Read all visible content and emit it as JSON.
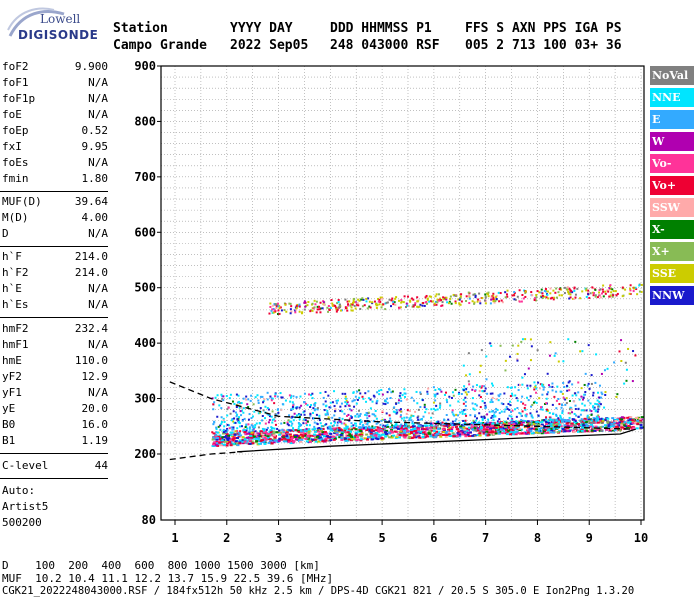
{
  "logo": {
    "line1": "Lowell",
    "line2": "DIGISONDE"
  },
  "header": {
    "labels_row1": [
      "Station",
      "YYYY DAY",
      "DDD HHMMSS P1",
      "FFS S AXN PPS IGA PS"
    ],
    "labels_row2": [
      "Campo Grande",
      "2022 Sep05",
      "248 043000 RSF",
      "005 2 713 100 03+ 36"
    ]
  },
  "params": {
    "group1": [
      {
        "name": "foF2",
        "value": "9.900"
      },
      {
        "name": "foF1",
        "value": "N/A"
      },
      {
        "name": "foF1p",
        "value": "N/A"
      },
      {
        "name": "foE",
        "value": "N/A"
      },
      {
        "name": "foEp",
        "value": "0.52"
      },
      {
        "name": "fxI",
        "value": "9.95"
      },
      {
        "name": "foEs",
        "value": "N/A"
      },
      {
        "name": "fmin",
        "value": "1.80"
      }
    ],
    "group2": [
      {
        "name": "MUF(D)",
        "value": "39.64"
      },
      {
        "name": "M(D)",
        "value": "4.00"
      },
      {
        "name": "D",
        "value": "N/A"
      }
    ],
    "group3": [
      {
        "name": "h`F",
        "value": "214.0"
      },
      {
        "name": "h`F2",
        "value": "214.0"
      },
      {
        "name": "h`E",
        "value": "N/A"
      },
      {
        "name": "h`Es",
        "value": "N/A"
      }
    ],
    "group4": [
      {
        "name": "hmF2",
        "value": "232.4"
      },
      {
        "name": "hmF1",
        "value": "N/A"
      },
      {
        "name": "hmE",
        "value": "110.0"
      },
      {
        "name": "yF2",
        "value": "12.9"
      },
      {
        "name": "yF1",
        "value": "N/A"
      },
      {
        "name": "yE",
        "value": "20.0"
      },
      {
        "name": "B0",
        "value": "16.0"
      },
      {
        "name": "B1",
        "value": "1.19"
      }
    ],
    "group5": [
      {
        "name": "C-level",
        "value": "44"
      }
    ],
    "auto": [
      "Auto:",
      "Artist5",
      "500200"
    ]
  },
  "legend": [
    {
      "label": "NoVal",
      "color": "#808080"
    },
    {
      "label": "NNE",
      "color": "#00e5ff"
    },
    {
      "label": "E",
      "color": "#33aaff"
    },
    {
      "label": "W",
      "color": "#b000b0"
    },
    {
      "label": "Vo-",
      "color": "#ff3399"
    },
    {
      "label": "Vo+",
      "color": "#ee0033"
    },
    {
      "label": "SSW",
      "color": "#ffaaaa"
    },
    {
      "label": "X-",
      "color": "#008000"
    },
    {
      "label": "X+",
      "color": "#88bb55"
    },
    {
      "label": "SSE",
      "color": "#cccc00"
    },
    {
      "label": "NNW",
      "color": "#1a1acc"
    }
  ],
  "chart_data": {
    "type": "scatter",
    "xlabel": "",
    "ylabel": "",
    "x_ticks": [
      "1",
      "2",
      "3",
      "4",
      "5",
      "6",
      "7",
      "8",
      "9",
      "10"
    ],
    "y_ticks": [
      "80",
      "200",
      "300",
      "400",
      "500",
      "600",
      "700",
      "800",
      "900"
    ],
    "xlim": [
      0.9,
      10
    ],
    "ylim_break": "80 at bottom, linear 200-900 above",
    "grid": true,
    "traces": [
      {
        "name": "F2 trace (ordinary)",
        "x_range": [
          1.7,
          10.0
        ],
        "height_range": [
          218,
          262
        ]
      },
      {
        "name": "F2 upper spread",
        "x_range": [
          1.7,
          9.9
        ],
        "height_range": [
          255,
          350
        ]
      },
      {
        "name": "2nd hop",
        "x_range": [
          2.8,
          10.0
        ],
        "height_range": [
          450,
          520
        ]
      }
    ],
    "profile_lines": [
      {
        "name": "dashed",
        "points": [
          [
            0.9,
            330
          ],
          [
            1.7,
            300
          ],
          [
            3.0,
            268
          ],
          [
            5,
            258
          ],
          [
            8,
            250
          ],
          [
            9.8,
            245
          ]
        ]
      },
      {
        "name": "dashed lower",
        "points": [
          [
            0.9,
            190
          ],
          [
            1.7,
            200
          ],
          [
            2.3,
            204
          ]
        ]
      },
      {
        "name": "solid",
        "points": [
          [
            2.2,
            204
          ],
          [
            4,
            214
          ],
          [
            6,
            222
          ],
          [
            8,
            230
          ],
          [
            9.6,
            236
          ],
          [
            9.9,
            245
          ]
        ]
      }
    ]
  },
  "footer": {
    "line1": "D    100  200  400  600  800 1000 1500 3000 [km]",
    "line2": "MUF  10.2 10.4 11.1 12.2 13.7 15.9 22.5 39.6 [MHz]",
    "line3": "CGK21_2022248043000.RSF / 184fx512h 50 kHz 2.5 km / DPS-4D CGK21 821 / 20.5 S 305.0 E Ion2Png 1.3.20"
  }
}
